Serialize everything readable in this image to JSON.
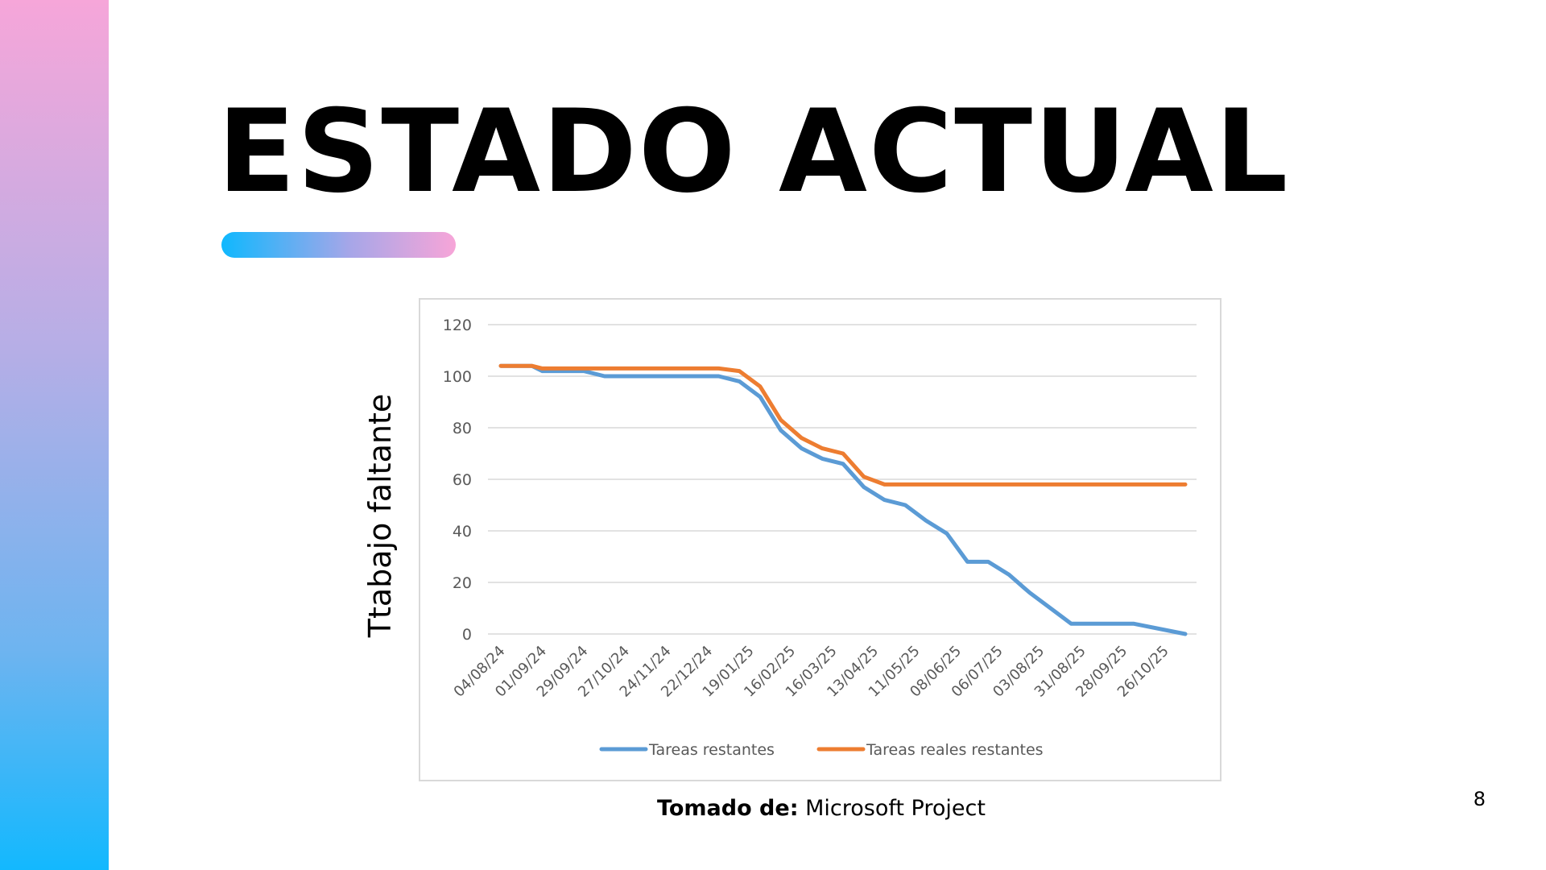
{
  "slide": {
    "title": "ESTADO ACTUAL",
    "source_label": "Tomado de:",
    "source_value": "Microsoft Project",
    "page_number": "8",
    "colors": {
      "sidebar_top": "#f6a6d9",
      "sidebar_bottom": "#13b8fe",
      "accent_left": "#0fb8fe",
      "accent_right": "#f7a5d8"
    }
  },
  "chart_data": {
    "type": "line",
    "ylabel": "Ttabajo faltante",
    "xlabel": "",
    "ylim": [
      0,
      120
    ],
    "yticks": [
      0,
      20,
      40,
      60,
      80,
      100,
      120
    ],
    "grid": true,
    "legend_position": "bottom",
    "x": [
      "2024-08-04",
      "2024-08-11",
      "2024-08-18",
      "2024-08-25",
      "2024-09-01",
      "2024-09-08",
      "2024-09-15",
      "2024-09-22",
      "2024-09-29",
      "2024-10-06",
      "2024-10-13",
      "2024-10-20",
      "2024-10-27",
      "2024-11-03",
      "2024-11-10",
      "2024-11-17",
      "2024-11-24",
      "2024-12-01",
      "2024-12-08",
      "2024-12-15",
      "2024-12-22",
      "2024-12-29",
      "2025-01-05",
      "2025-01-12",
      "2025-01-19",
      "2025-01-26",
      "2025-02-02",
      "2025-02-09",
      "2025-02-16",
      "2025-02-23",
      "2025-03-02",
      "2025-03-09",
      "2025-03-16",
      "2025-03-23",
      "2025-03-30",
      "2025-04-06",
      "2025-04-13",
      "2025-04-20",
      "2025-04-27",
      "2025-05-04",
      "2025-05-11",
      "2025-05-18",
      "2025-05-25",
      "2025-06-01",
      "2025-06-08",
      "2025-06-15",
      "2025-06-22",
      "2025-06-29",
      "2025-07-06",
      "2025-07-13",
      "2025-07-20",
      "2025-07-27",
      "2025-08-03",
      "2025-08-10",
      "2025-08-17",
      "2025-08-24",
      "2025-08-31",
      "2025-09-07",
      "2025-09-14",
      "2025-09-21",
      "2025-09-28",
      "2025-10-05",
      "2025-10-12",
      "2025-10-19",
      "2025-10-26",
      "2025-11-02",
      "2025-11-09"
    ],
    "x_tick_labels": [
      "04/08/24",
      "01/09/24",
      "29/09/24",
      "27/10/24",
      "24/11/24",
      "22/12/24",
      "19/01/25",
      "16/02/25",
      "16/03/25",
      "13/04/25",
      "11/05/25",
      "08/06/25",
      "06/07/25",
      "03/08/25",
      "31/08/25",
      "28/09/25",
      "26/10/25"
    ],
    "series": [
      {
        "name": "Tareas restantes",
        "color": "#5b9bd5",
        "points": [
          [
            "2024-08-04",
            104
          ],
          [
            "2024-08-25",
            104
          ],
          [
            "2024-09-01",
            102
          ],
          [
            "2024-09-29",
            102
          ],
          [
            "2024-10-13",
            100
          ],
          [
            "2024-12-29",
            100
          ],
          [
            "2025-01-12",
            98
          ],
          [
            "2025-01-26",
            92
          ],
          [
            "2025-02-09",
            79
          ],
          [
            "2025-02-23",
            72
          ],
          [
            "2025-03-09",
            68
          ],
          [
            "2025-03-23",
            66
          ],
          [
            "2025-04-06",
            57
          ],
          [
            "2025-04-20",
            52
          ],
          [
            "2025-05-04",
            50
          ],
          [
            "2025-05-18",
            44
          ],
          [
            "2025-06-01",
            39
          ],
          [
            "2025-06-15",
            28
          ],
          [
            "2025-06-29",
            28
          ],
          [
            "2025-07-13",
            23
          ],
          [
            "2025-07-27",
            16
          ],
          [
            "2025-08-10",
            10
          ],
          [
            "2025-08-24",
            4
          ],
          [
            "2025-10-05",
            4
          ],
          [
            "2025-11-09",
            0
          ]
        ]
      },
      {
        "name": "Tareas reales restantes",
        "color": "#ed7d31",
        "points": [
          [
            "2024-08-04",
            104
          ],
          [
            "2024-08-25",
            104
          ],
          [
            "2024-09-01",
            103
          ],
          [
            "2024-12-29",
            103
          ],
          [
            "2025-01-12",
            102
          ],
          [
            "2025-01-26",
            96
          ],
          [
            "2025-02-09",
            83
          ],
          [
            "2025-02-23",
            76
          ],
          [
            "2025-03-09",
            72
          ],
          [
            "2025-03-23",
            70
          ],
          [
            "2025-04-06",
            61
          ],
          [
            "2025-04-20",
            58
          ],
          [
            "2025-11-09",
            58
          ]
        ]
      }
    ]
  }
}
